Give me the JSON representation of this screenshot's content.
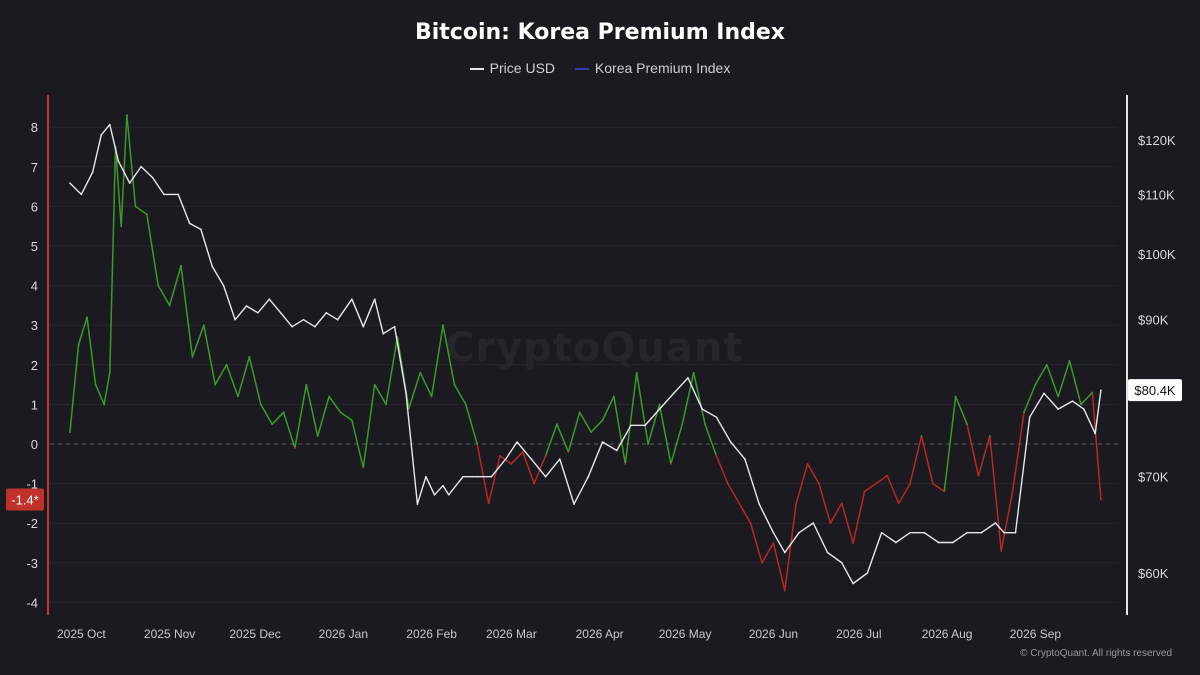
{
  "chart_data": {
    "type": "line",
    "title": "Bitcoin: Korea Premium Index",
    "legend": {
      "placement": "top-center"
    },
    "series": [
      {
        "name": "Price USD",
        "color": "#e8e8ec",
        "axis": "right",
        "x": [
          "2025-09-27",
          "2025-10-01",
          "2025-10-05",
          "2025-10-08",
          "2025-10-11",
          "2025-10-14",
          "2025-10-18",
          "2025-10-22",
          "2025-10-26",
          "2025-10-30",
          "2025-11-04",
          "2025-11-08",
          "2025-11-12",
          "2025-11-16",
          "2025-11-20",
          "2025-11-24",
          "2025-11-28",
          "2025-12-02",
          "2025-12-06",
          "2025-12-10",
          "2025-12-14",
          "2025-12-18",
          "2025-12-22",
          "2025-12-26",
          "2025-12-30",
          "2026-01-04",
          "2026-01-08",
          "2026-01-12",
          "2026-01-15",
          "2026-01-19",
          "2026-01-23",
          "2026-01-27",
          "2026-01-30",
          "2026-02-02",
          "2026-02-05",
          "2026-02-07",
          "2026-02-12",
          "2026-02-17",
          "2026-02-22",
          "2026-02-27",
          "2026-03-03",
          "2026-03-08",
          "2026-03-13",
          "2026-03-18",
          "2026-03-23",
          "2026-03-28",
          "2026-04-02",
          "2026-04-07",
          "2026-04-12",
          "2026-04-17",
          "2026-04-22",
          "2026-04-27",
          "2026-05-02",
          "2026-05-07",
          "2026-05-12",
          "2026-05-17",
          "2026-05-22",
          "2026-05-27",
          "2026-06-01",
          "2026-06-05",
          "2026-06-10",
          "2026-06-15",
          "2026-06-20",
          "2026-06-25",
          "2026-06-29",
          "2026-07-04",
          "2026-07-09",
          "2026-07-14",
          "2026-07-19",
          "2026-07-24",
          "2026-07-29",
          "2026-08-03",
          "2026-08-08",
          "2026-08-13",
          "2026-08-18",
          "2026-08-21",
          "2026-08-25",
          "2026-08-30",
          "2026-09-04",
          "2026-09-09",
          "2026-09-14",
          "2026-09-18",
          "2026-09-22",
          "2026-09-24"
        ],
        "values": [
          112,
          110,
          114,
          121,
          123,
          116,
          112,
          115,
          113,
          110,
          110,
          105,
          104,
          98,
          95,
          90,
          92,
          91,
          93,
          91,
          89,
          90,
          89,
          91,
          90,
          93,
          89,
          93,
          88,
          89,
          80,
          67,
          70,
          68,
          69,
          68,
          70,
          70,
          70,
          72,
          74,
          72,
          70,
          72,
          67,
          70,
          74,
          73,
          76,
          76,
          78,
          80,
          82,
          78,
          77,
          74,
          72,
          67,
          64,
          62,
          64,
          65,
          62,
          61,
          59,
          60,
          64,
          63,
          64,
          64,
          63,
          63,
          64,
          64,
          65,
          64,
          64,
          77,
          80,
          78,
          79,
          78,
          75,
          80.4
        ]
      },
      {
        "name": "Korea Premium Index",
        "color": "#3b3ba8",
        "positive_color": "#3a9b2a",
        "negative_color": "#b52a24",
        "axis": "left",
        "x": [
          "2025-09-27",
          "2025-09-30",
          "2025-10-03",
          "2025-10-06",
          "2025-10-09",
          "2025-10-11",
          "2025-10-13",
          "2025-10-15",
          "2025-10-17",
          "2025-10-20",
          "2025-10-24",
          "2025-10-28",
          "2025-11-01",
          "2025-11-05",
          "2025-11-09",
          "2025-11-13",
          "2025-11-17",
          "2025-11-21",
          "2025-11-25",
          "2025-11-29",
          "2025-12-03",
          "2025-12-07",
          "2025-12-11",
          "2025-12-15",
          "2025-12-19",
          "2025-12-23",
          "2025-12-27",
          "2025-12-31",
          "2026-01-04",
          "2026-01-08",
          "2026-01-12",
          "2026-01-16",
          "2026-01-20",
          "2026-01-24",
          "2026-01-28",
          "2026-02-01",
          "2026-02-05",
          "2026-02-09",
          "2026-02-13",
          "2026-02-17",
          "2026-02-21",
          "2026-02-25",
          "2026-03-01",
          "2026-03-05",
          "2026-03-09",
          "2026-03-13",
          "2026-03-17",
          "2026-03-21",
          "2026-03-25",
          "2026-03-29",
          "2026-04-02",
          "2026-04-06",
          "2026-04-10",
          "2026-04-14",
          "2026-04-18",
          "2026-04-22",
          "2026-04-26",
          "2026-04-30",
          "2026-05-04",
          "2026-05-08",
          "2026-05-12",
          "2026-05-16",
          "2026-05-20",
          "2026-05-24",
          "2026-05-28",
          "2026-06-01",
          "2026-06-05",
          "2026-06-09",
          "2026-06-13",
          "2026-06-17",
          "2026-06-21",
          "2026-06-25",
          "2026-06-29",
          "2026-07-03",
          "2026-07-07",
          "2026-07-11",
          "2026-07-15",
          "2026-07-19",
          "2026-07-23",
          "2026-07-27",
          "2026-07-31",
          "2026-08-04",
          "2026-08-08",
          "2026-08-12",
          "2026-08-16",
          "2026-08-20",
          "2026-08-24",
          "2026-08-28",
          "2026-09-01",
          "2026-09-05",
          "2026-09-09",
          "2026-09-13",
          "2026-09-17",
          "2026-09-21",
          "2026-09-24"
        ],
        "values": [
          0.3,
          2.5,
          3.2,
          1.5,
          1.0,
          1.8,
          7.5,
          5.5,
          8.3,
          6.0,
          5.8,
          4.0,
          3.5,
          4.5,
          2.2,
          3.0,
          1.5,
          2.0,
          1.2,
          2.2,
          1.0,
          0.5,
          0.8,
          -0.1,
          1.5,
          0.2,
          1.2,
          0.8,
          0.6,
          -0.6,
          1.5,
          1.0,
          2.7,
          0.9,
          1.8,
          1.2,
          3.0,
          1.5,
          1.0,
          0.0,
          -1.5,
          -0.3,
          -0.5,
          -0.2,
          -1.0,
          -0.3,
          0.5,
          -0.2,
          0.8,
          0.3,
          0.6,
          1.2,
          -0.5,
          1.8,
          0.0,
          1.0,
          -0.5,
          0.5,
          1.8,
          0.5,
          -0.3,
          -1.0,
          -1.5,
          -2.0,
          -3.0,
          -2.5,
          -3.7,
          -1.5,
          -0.5,
          -1.0,
          -2.0,
          -1.5,
          -2.5,
          -1.2,
          -1.0,
          -0.8,
          -1.5,
          -1.0,
          0.2,
          -1.0,
          -1.2,
          1.2,
          0.5,
          -0.8,
          0.2,
          -2.7,
          -1.2,
          0.8,
          1.5,
          2.0,
          1.2,
          2.1,
          1.0,
          1.3,
          -1.4
        ]
      }
    ],
    "y_left": {
      "ticks": [
        "8",
        "7",
        "6",
        "5",
        "4",
        "3",
        "2",
        "1",
        "0",
        "-1",
        "-2",
        "-3",
        "-4"
      ],
      "ylim": [
        -4.3,
        8.5
      ]
    },
    "y_right": {
      "ticks": [
        "$120K",
        "$110K",
        "$100K",
        "$90K",
        "$80K",
        "$70K",
        "$60K"
      ],
      "tick_values": [
        120,
        110,
        100,
        90,
        80,
        70,
        60
      ],
      "ylim": [
        57,
        127
      ],
      "scale": "log"
    },
    "x_ticks": [
      "2025 Oct",
      "2025 Nov",
      "2025 Dec",
      "2026 Jan",
      "2026 Feb",
      "2026 Mar",
      "2026 Apr",
      "2026 May",
      "2026 Jun",
      "2026 Jul",
      "2026 Aug",
      "2026 Sep"
    ],
    "x_tick_dates": [
      "2025-10-01",
      "2025-11-01",
      "2025-12-01",
      "2026-01-01",
      "2026-02-01",
      "2026-03-01",
      "2026-04-01",
      "2026-05-01",
      "2026-06-01",
      "2026-07-01",
      "2026-08-01",
      "2026-09-01"
    ],
    "x_range": [
      "2025-09-20",
      "2026-09-30"
    ],
    "last_value_badges": {
      "left": "-1.4*",
      "right": "$80.4K"
    },
    "watermark": "CryptoQuant",
    "grid": true
  },
  "footer": "© CryptoQuant. All rights reserved"
}
